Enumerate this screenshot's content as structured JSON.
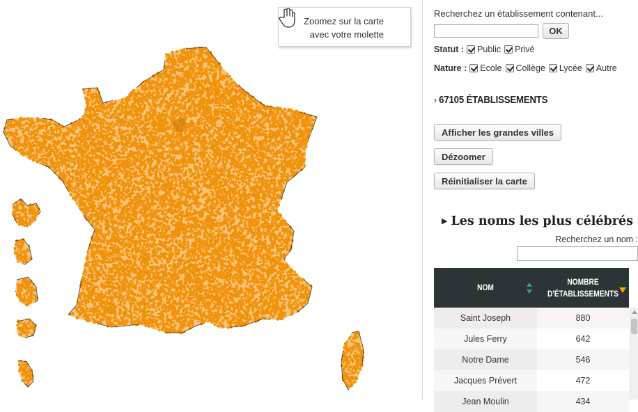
{
  "map": {
    "hint_line1": "Zoomez sur la carte",
    "hint_line2": "avec votre molette",
    "dot_color": "#f0920a",
    "coast_color": "#222222",
    "hand_icon": "hand-pointer-icon"
  },
  "search": {
    "label": "Recherchez un établissement contenant...",
    "value": "",
    "ok_label": "OK"
  },
  "filters": {
    "statut": {
      "label": "Statut :",
      "options": [
        {
          "label": "Public",
          "checked": true
        },
        {
          "label": "Privé",
          "checked": true
        }
      ]
    },
    "nature": {
      "label": "Nature :",
      "options": [
        {
          "label": "Ecole",
          "checked": true
        },
        {
          "label": "Collège",
          "checked": true
        },
        {
          "label": "Lycée",
          "checked": true
        },
        {
          "label": "Autre",
          "checked": true
        }
      ]
    }
  },
  "count_text": "67105 ÉTABLISSEMENTS",
  "buttons": {
    "big_cities": "Afficher les grandes villes",
    "zoom_out": "Dézoomer",
    "reset": "Réinitialiser la carte"
  },
  "famous": {
    "title": "Les noms les plus célébrés",
    "search_label": "Recherchez un nom :",
    "search_value": "",
    "columns": {
      "name": "NOM",
      "count_line1": "NOMBRE",
      "count_line2": "D'ÉTABLISSEMENTS"
    },
    "rows": [
      {
        "name": "Saint Joseph",
        "count": "880"
      },
      {
        "name": "Jules Ferry",
        "count": "642"
      },
      {
        "name": "Notre Dame",
        "count": "546"
      },
      {
        "name": "Jacques Prévert",
        "count": "472"
      },
      {
        "name": "Jean Moulin",
        "count": "434"
      }
    ],
    "sort_color": "#2aa58a",
    "sort_active_color": "#f0a500"
  }
}
